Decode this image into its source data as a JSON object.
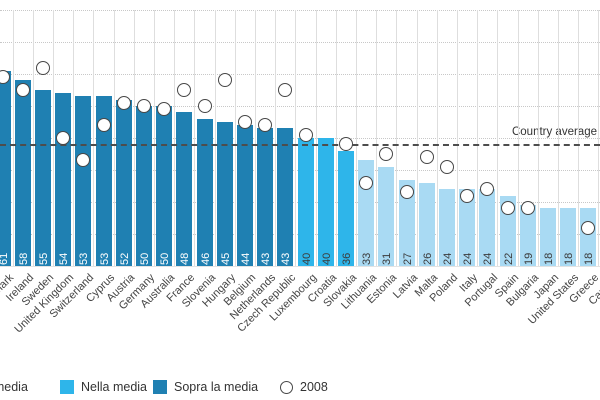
{
  "chart": {
    "average_label": "Country average",
    "average_value": 38,
    "colors": {
      "sopra": "#1f80b2",
      "nella": "#2eb5ea",
      "sotto": "#a9daf3",
      "circle_stroke": "#474747",
      "value_text_on_dark": "#ffffff",
      "value_text_on_light": "#3b3b3b"
    },
    "legend": {
      "items": [
        {
          "key": "sotto",
          "label": "Sotto la media"
        },
        {
          "key": "nella",
          "label": "Nella media"
        },
        {
          "key": "sopra",
          "label": "Sopra la media"
        },
        {
          "key": "circle",
          "label": "2008"
        }
      ]
    },
    "countries": [
      {
        "name": "Denmark",
        "value": 61,
        "category": "sopra",
        "value_2008": 59
      },
      {
        "name": "Ireland",
        "value": 58,
        "category": "sopra",
        "value_2008": 55
      },
      {
        "name": "Sweden",
        "value": 55,
        "category": "sopra",
        "value_2008": 62
      },
      {
        "name": "United Kingdom",
        "value": 54,
        "category": "sopra",
        "value_2008": 40
      },
      {
        "name": "Switzerland",
        "value": 53,
        "category": "sopra",
        "value_2008": 33
      },
      {
        "name": "Cyprus",
        "value": 53,
        "category": "sopra",
        "value_2008": 44
      },
      {
        "name": "Austria",
        "value": 52,
        "category": "sopra",
        "value_2008": 51
      },
      {
        "name": "Germany",
        "value": 50,
        "category": "sopra",
        "value_2008": 50
      },
      {
        "name": "Australia",
        "value": 50,
        "category": "sopra",
        "value_2008": 49
      },
      {
        "name": "France",
        "value": 48,
        "category": "sopra",
        "value_2008": 55
      },
      {
        "name": "Slovenia",
        "value": 46,
        "category": "sopra",
        "value_2008": 50
      },
      {
        "name": "Hungary",
        "value": 45,
        "category": "sopra",
        "value_2008": 58
      },
      {
        "name": "Belgium",
        "value": 44,
        "category": "sopra",
        "value_2008": 45
      },
      {
        "name": "Netherlands",
        "value": 43,
        "category": "sopra",
        "value_2008": 44
      },
      {
        "name": "Czech Republic",
        "value": 43,
        "category": "sopra",
        "value_2008": 55
      },
      {
        "name": "Luxembourg",
        "value": 40,
        "category": "nella",
        "value_2008": 41
      },
      {
        "name": "Croatia",
        "value": 40,
        "category": "nella",
        "value_2008": null
      },
      {
        "name": "Slovakia",
        "value": 36,
        "category": "nella",
        "value_2008": 38
      },
      {
        "name": "Lithuania",
        "value": 33,
        "category": "sotto",
        "value_2008": 26
      },
      {
        "name": "Estonia",
        "value": 31,
        "category": "sotto",
        "value_2008": 35
      },
      {
        "name": "Latvia",
        "value": 27,
        "category": "sotto",
        "value_2008": 23
      },
      {
        "name": "Malta",
        "value": 26,
        "category": "sotto",
        "value_2008": 34
      },
      {
        "name": "Poland",
        "value": 24,
        "category": "sotto",
        "value_2008": 31
      },
      {
        "name": "Italy",
        "value": 24,
        "category": "sotto",
        "value_2008": 22
      },
      {
        "name": "Portugal",
        "value": 24,
        "category": "sotto",
        "value_2008": 24
      },
      {
        "name": "Spain",
        "value": 22,
        "category": "sotto",
        "value_2008": 18
      },
      {
        "name": "Bulgaria",
        "value": 19,
        "category": "sotto",
        "value_2008": 18
      },
      {
        "name": "Japan",
        "value": 18,
        "category": "sotto",
        "value_2008": null
      },
      {
        "name": "United States",
        "value": 18,
        "category": "sotto",
        "value_2008": null
      },
      {
        "name": "Greece",
        "value": 18,
        "category": "sotto",
        "value_2008": 12
      },
      {
        "name": "Canada",
        "value": null,
        "category": "sotto",
        "value_2008": null
      }
    ]
  },
  "chart_data": {
    "type": "bar",
    "title": "",
    "xlabel": "",
    "ylabel": "",
    "ylim": [
      0,
      80
    ],
    "grid_step": 10,
    "grid": true,
    "legend_position": "bottom",
    "legend_entries": [
      "Sotto la media",
      "Nella media",
      "Sopra la media",
      "2008"
    ],
    "categories": [
      "Denmark",
      "Ireland",
      "Sweden",
      "United Kingdom",
      "Switzerland",
      "Cyprus",
      "Austria",
      "Germany",
      "Australia",
      "France",
      "Slovenia",
      "Hungary",
      "Belgium",
      "Netherlands",
      "Czech Republic",
      "Luxembourg",
      "Croatia",
      "Slovakia",
      "Lithuania",
      "Estonia",
      "Latvia",
      "Malta",
      "Poland",
      "Italy",
      "Portugal",
      "Spain",
      "Bulgaria",
      "Japan",
      "United States",
      "Greece",
      "Canada"
    ],
    "series": [
      {
        "name": "value",
        "type": "bar",
        "values": [
          61,
          58,
          55,
          54,
          53,
          53,
          52,
          50,
          50,
          48,
          46,
          45,
          44,
          43,
          43,
          40,
          40,
          36,
          33,
          31,
          27,
          26,
          24,
          24,
          24,
          22,
          19,
          18,
          18,
          18,
          null
        ]
      },
      {
        "name": "2008",
        "type": "scatter",
        "values": [
          59,
          55,
          62,
          40,
          33,
          44,
          51,
          50,
          49,
          55,
          50,
          58,
          45,
          44,
          55,
          41,
          null,
          38,
          26,
          35,
          23,
          34,
          31,
          22,
          24,
          18,
          18,
          null,
          null,
          12,
          null
        ]
      }
    ],
    "bar_color_category": [
      "sopra",
      "sopra",
      "sopra",
      "sopra",
      "sopra",
      "sopra",
      "sopra",
      "sopra",
      "sopra",
      "sopra",
      "sopra",
      "sopra",
      "sopra",
      "sopra",
      "sopra",
      "nella",
      "nella",
      "nella",
      "sotto",
      "sotto",
      "sotto",
      "sotto",
      "sotto",
      "sotto",
      "sotto",
      "sotto",
      "sotto",
      "sotto",
      "sotto",
      "sotto",
      "sotto"
    ],
    "annotations": [
      {
        "label": "Country average",
        "value": 38,
        "style": "dashed-line"
      }
    ]
  }
}
